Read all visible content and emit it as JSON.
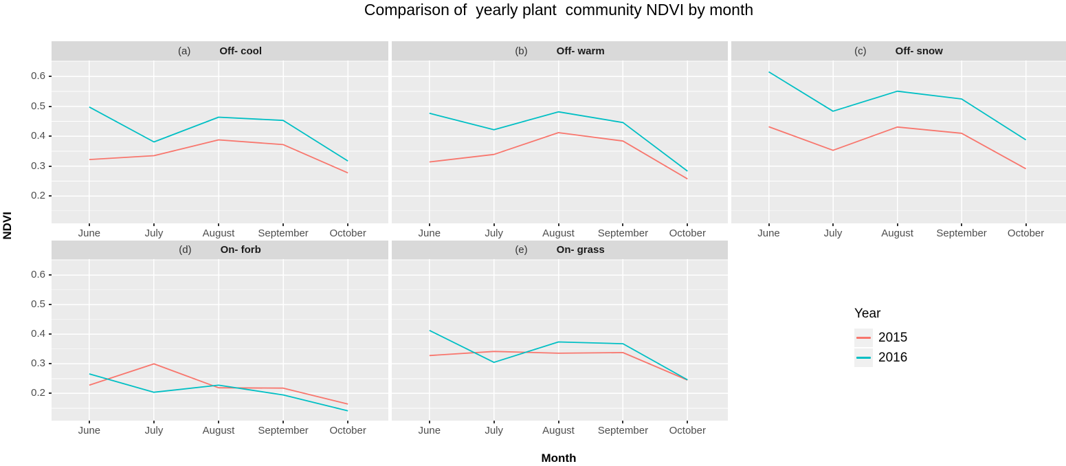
{
  "title": "Comparison of  yearly plant  community NDVI by month",
  "axes": {
    "x_label": "Month",
    "y_label": "NDVI",
    "x_tick_labels": [
      "June",
      "July",
      "August",
      "September",
      "October"
    ],
    "y_tick_labels": [
      "0.6",
      "0.5",
      "0.4",
      "0.3",
      "0.2"
    ]
  },
  "legend": {
    "title": "Year",
    "entries": [
      {
        "label": "2015",
        "color": "#F8766D"
      },
      {
        "label": "2016",
        "color": "#00BFC4"
      }
    ]
  },
  "colors": {
    "panel_background": "#EBEBEB",
    "strip_background": "#D9D9D9",
    "gridline": "#FFFFFF",
    "axis_text": "#4D4D4D",
    "tick_mark": "#333333",
    "series_2015": "#F8766D",
    "series_2016": "#00BFC4"
  },
  "chart_data": {
    "type": "line",
    "title": "Comparison of  yearly plant  community NDVI by month",
    "xlabel": "Month",
    "ylabel": "NDVI",
    "categories": [
      "June",
      "July",
      "August",
      "September",
      "October"
    ],
    "y_ticks": [
      0.2,
      0.3,
      0.4,
      0.5,
      0.6
    ],
    "ylim": [
      0.11,
      0.65
    ],
    "grid": "on",
    "legend_position": "right-middle",
    "facets": [
      {
        "tag": "(a)",
        "label": "Off- cool",
        "series": [
          {
            "name": "2015",
            "values": [
              0.322,
              0.335,
              0.388,
              0.372,
              0.277
            ]
          },
          {
            "name": "2016",
            "values": [
              0.498,
              0.381,
              0.464,
              0.453,
              0.317
            ]
          }
        ]
      },
      {
        "tag": "(b)",
        "label": "Off- warm",
        "series": [
          {
            "name": "2015",
            "values": [
              0.314,
              0.339,
              0.412,
              0.384,
              0.257
            ]
          },
          {
            "name": "2016",
            "values": [
              0.477,
              0.422,
              0.482,
              0.446,
              0.283
            ]
          }
        ]
      },
      {
        "tag": "(c)",
        "label": "Off- snow",
        "series": [
          {
            "name": "2015",
            "values": [
              0.432,
              0.353,
              0.431,
              0.41,
              0.291
            ]
          },
          {
            "name": "2016",
            "values": [
              0.616,
              0.484,
              0.551,
              0.525,
              0.388
            ]
          }
        ]
      },
      {
        "tag": "(d)",
        "label": "On- forb",
        "series": [
          {
            "name": "2015",
            "values": [
              0.228,
              0.3,
              0.219,
              0.218,
              0.164
            ]
          },
          {
            "name": "2016",
            "values": [
              0.266,
              0.204,
              0.228,
              0.195,
              0.141
            ]
          }
        ]
      },
      {
        "tag": "(e)",
        "label": "On- grass",
        "series": [
          {
            "name": "2015",
            "values": [
              0.328,
              0.342,
              0.336,
              0.338,
              0.245
            ]
          },
          {
            "name": "2016",
            "values": [
              0.413,
              0.305,
              0.374,
              0.368,
              0.246
            ]
          }
        ]
      }
    ]
  }
}
